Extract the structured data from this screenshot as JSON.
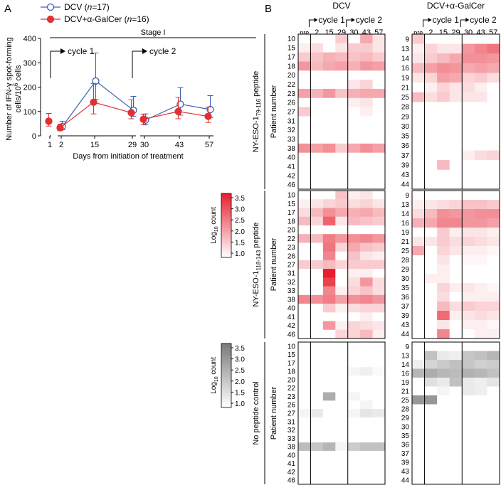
{
  "panel_labels": {
    "a": "A",
    "b": "B"
  },
  "chart_data": [
    {
      "type": "line",
      "panel": "A",
      "legend": [
        {
          "name": "DCV",
          "n": "17",
          "marker": "open",
          "color": "#3a5fb0"
        },
        {
          "name": "DCV+α-GalCer",
          "n": "16",
          "marker": "filled",
          "color": "#e03030"
        }
      ],
      "stage_label": "Stage I",
      "cycle_labels": [
        "cycle 1",
        "cycle 2"
      ],
      "ylabel_line1": "Number of IFN-γ spot-forming",
      "ylabel_line2": "cells/10",
      "ylabel_sup": "6",
      "ylabel_tail": " cells",
      "xlabel": "Days from initiation of treatment",
      "ylim": [
        0,
        400
      ],
      "yticks": [
        "0",
        "100",
        "200",
        "300",
        "400"
      ],
      "xticks": [
        "1",
        "2",
        "15",
        "29",
        "30",
        "43",
        "57"
      ],
      "series": [
        {
          "name": "DCV",
          "color": "#3a5fb0",
          "fill": "open",
          "means": [
            null,
            38,
            225,
            105,
            65,
            130,
            108
          ],
          "upper": [
            null,
            60,
            340,
            162,
            90,
            198,
            165
          ],
          "lower": [
            null,
            25,
            150,
            80,
            45,
            85,
            75
          ]
        },
        {
          "name": "DCV+α-GalCer",
          "color": "#e03030",
          "fill": "filled",
          "means": [
            60,
            33,
            138,
            95,
            68,
            100,
            80
          ],
          "upper": [
            92,
            48,
            215,
            148,
            88,
            158,
            118
          ],
          "lower": [
            40,
            22,
            90,
            70,
            48,
            70,
            55
          ]
        }
      ]
    },
    {
      "type": "heatmap",
      "panel": "B",
      "group_titles": [
        "DCV",
        "DCV+α-GalCer"
      ],
      "column_labels": [
        "pre",
        "2",
        "15",
        "29",
        "30",
        "43",
        "57"
      ],
      "cycle_labels": [
        "cycle 1",
        "cycle 2"
      ],
      "ylabel": "Patient number",
      "patients_dcv": [
        "10",
        "15",
        "17",
        "18",
        "20",
        "22",
        "23",
        "26",
        "27",
        "31",
        "32",
        "33",
        "38",
        "40",
        "41",
        "42",
        "46"
      ],
      "patients_dcvgc": [
        "9",
        "13",
        "14",
        "16",
        "19",
        "21",
        "25",
        "28",
        "29",
        "30",
        "35",
        "36",
        "37",
        "39",
        "43",
        "44"
      ],
      "rows": [
        {
          "label_main": "NY-ESO-1",
          "label_sub": "79-116",
          "label_tail": " peptide",
          "scale": "red",
          "colorbar_title": "Log",
          "colorbar_sub": "10",
          "colorbar_tail": " count",
          "colorbar_ticks": [
            "1.0",
            "1.5",
            "2.0",
            "2.5",
            "3.0",
            "3.5"
          ],
          "dcv": [
            [
              0,
              0,
              0,
              1.6,
              0,
              2.0,
              1.3
            ],
            [
              1.2,
              1.4,
              1.0,
              1.3,
              1.6,
              1.6,
              1.3
            ],
            [
              1.6,
              1.7,
              1.9,
              1.8,
              1.7,
              1.8,
              1.6
            ],
            [
              2.2,
              1.8,
              2.0,
              2.1,
              1.9,
              2.2,
              2.1
            ],
            [
              0,
              0,
              0,
              0,
              0,
              0,
              0
            ],
            [
              0,
              0,
              0,
              0,
              1.3,
              1.5,
              0
            ],
            [
              2.1,
              1.9,
              2.2,
              1.7,
              1.9,
              2.0,
              2.0
            ],
            [
              0,
              0,
              0,
              0,
              1.2,
              1.3,
              1.0
            ],
            [
              1.6,
              0,
              0,
              0,
              1.0,
              1.2,
              0
            ],
            [
              0,
              0,
              0,
              0,
              0,
              0,
              0
            ],
            [
              0,
              0,
              0,
              0,
              0,
              0,
              0
            ],
            [
              0,
              0,
              0,
              0,
              0,
              0,
              0
            ],
            [
              2.3,
              2.1,
              2.3,
              1.6,
              2.0,
              2.3,
              2.1
            ],
            [
              0,
              0,
              0,
              0,
              0,
              0,
              0
            ],
            [
              0,
              0,
              0,
              0,
              0,
              0,
              0
            ],
            [
              0,
              0,
              0,
              0,
              0,
              0,
              0
            ],
            [
              0,
              0,
              0,
              0,
              0,
              0,
              0
            ]
          ],
          "dcvgc": [
            [
              1.6,
              0,
              0,
              0,
              0,
              0,
              0
            ],
            [
              1.2,
              1.5,
              1.3,
              1.3,
              2.2,
              2.4,
              2.6
            ],
            [
              1.3,
              1.6,
              1.8,
              2.0,
              2.3,
              2.3,
              2.2
            ],
            [
              1.8,
              2.1,
              2.3,
              2.2,
              2.0,
              2.1,
              2.0
            ],
            [
              1.3,
              1.5,
              2.1,
              2.0,
              1.5,
              1.6,
              1.4
            ],
            [
              0,
              1.2,
              1.5,
              1.3,
              1.4,
              1.2,
              1.0
            ],
            [
              1.8,
              1.4,
              1.6,
              1.3,
              1.3,
              1.3,
              0
            ],
            [
              0,
              0,
              0,
              0,
              0,
              0,
              0
            ],
            [
              0,
              0,
              0,
              0,
              0,
              0,
              0
            ],
            [
              0,
              0,
              0,
              0,
              0,
              0,
              0
            ],
            [
              0,
              0,
              0,
              0,
              0,
              0,
              0
            ],
            [
              0,
              0,
              0,
              0,
              0,
              0,
              1.0
            ],
            [
              0,
              0,
              0,
              1.0,
              1.2,
              1.4,
              1.5
            ],
            [
              0,
              0,
              1.8,
              0,
              0,
              0,
              0
            ],
            [
              0,
              0,
              0,
              0,
              0,
              0,
              0
            ],
            [
              0,
              0,
              0,
              0,
              0,
              0,
              0
            ]
          ]
        },
        {
          "label_main": "NY-ESO-1",
          "label_sub": "118-143",
          "label_tail": " peptide",
          "scale": "red",
          "colorbar_title": "Log",
          "colorbar_sub": "10",
          "colorbar_tail": " count",
          "colorbar_ticks": [
            "1.0",
            "1.5",
            "2.0",
            "2.5",
            "3.0",
            "3.5"
          ],
          "dcv": [
            [
              0,
              0,
              0,
              1.7,
              1.2,
              1.3,
              0
            ],
            [
              1.2,
              1.3,
              1.5,
              1.6,
              1.4,
              1.5,
              1.3
            ],
            [
              1.4,
              1.8,
              2.3,
              2.0,
              1.9,
              2.0,
              1.8
            ],
            [
              1.8,
              1.5,
              2.8,
              1.3,
              1.8,
              1.7,
              1.6
            ],
            [
              0,
              0,
              0,
              0,
              0,
              0,
              0
            ],
            [
              1.9,
              1.8,
              2.5,
              2.2,
              2.3,
              2.4,
              2.2
            ],
            [
              0,
              0,
              2.6,
              1.5,
              2.0,
              1.7,
              1.6
            ],
            [
              0,
              0,
              2.4,
              0,
              1.7,
              1.3,
              1.2
            ],
            [
              1.6,
              1.6,
              1.8,
              1.5,
              1.6,
              1.6,
              1.6
            ],
            [
              0,
              0,
              3.6,
              0,
              1.2,
              1.2,
              1.0
            ],
            [
              0,
              0,
              3.2,
              0,
              1.4,
              2.2,
              1.4
            ],
            [
              0,
              0,
              2.4,
              1.2,
              1.5,
              1.7,
              1.4
            ],
            [
              2.4,
              2.3,
              2.5,
              2.1,
              2.3,
              2.4,
              2.2
            ],
            [
              0,
              0,
              1.6,
              1.2,
              1.4,
              1.5,
              1.5
            ],
            [
              0,
              0,
              0,
              0,
              1.0,
              1.2,
              0
            ],
            [
              0,
              0,
              2.2,
              1.2,
              1.5,
              1.4,
              1.3
            ],
            [
              0,
              0,
              0,
              1.5,
              1.5,
              1.8,
              1.2
            ]
          ],
          "dcvgc": [
            [
              0,
              0,
              0,
              0,
              0,
              0,
              0
            ],
            [
              1.2,
              1.3,
              1.4,
              1.5,
              1.7,
              1.7,
              1.6
            ],
            [
              1.4,
              1.8,
              2.3,
              2.2,
              2.2,
              2.3,
              2.3
            ],
            [
              1.9,
              2.0,
              2.4,
              2.4,
              2.2,
              2.2,
              2.1
            ],
            [
              0,
              0,
              1.6,
              1.2,
              1.3,
              1.3,
              1.2
            ],
            [
              1.3,
              1.3,
              1.6,
              1.4,
              1.5,
              1.4,
              1.3
            ],
            [
              2.0,
              0,
              1.5,
              1.3,
              1.2,
              1.2,
              1.1
            ],
            [
              0,
              1.0,
              1.3,
              1.0,
              1.1,
              1.1,
              1.0
            ],
            [
              0,
              0,
              1.2,
              1.0,
              1.0,
              1.0,
              1.0
            ],
            [
              0,
              1.2,
              1.2,
              0,
              1.0,
              1.0,
              1.0
            ],
            [
              0,
              0,
              1.5,
              1.2,
              1.3,
              1.2,
              1.1
            ],
            [
              0,
              0,
              1.4,
              0,
              1.2,
              1.2,
              1.2
            ],
            [
              0,
              0,
              1.8,
              1.4,
              1.6,
              1.5,
              1.5
            ],
            [
              0,
              0,
              2.7,
              1.2,
              1.3,
              1.4,
              1.3
            ],
            [
              0,
              0,
              1.3,
              0,
              1.2,
              1.2,
              1.1
            ],
            [
              0,
              0,
              2.4,
              0,
              1.0,
              1.2,
              1.2
            ]
          ]
        },
        {
          "label_main": "No peptide control",
          "label_sub": "",
          "label_tail": "",
          "scale": "gray",
          "colorbar_title": "Log",
          "colorbar_sub": "10",
          "colorbar_tail": " count",
          "colorbar_ticks": [
            "1.0",
            "1.5",
            "2.0",
            "2.5",
            "3.0",
            "3.5"
          ],
          "dcv": [
            [
              0,
              0,
              1.0,
              0,
              0,
              0,
              0
            ],
            [
              0,
              0,
              0,
              0,
              0,
              0,
              0
            ],
            [
              0,
              0,
              0,
              0,
              0,
              1.0,
              0
            ],
            [
              0,
              0,
              0,
              0,
              1.2,
              1.3,
              1.1
            ],
            [
              0,
              0,
              0,
              0,
              0,
              0,
              0
            ],
            [
              0,
              0,
              0,
              0,
              0,
              0,
              0
            ],
            [
              0,
              0,
              2.6,
              0,
              1.2,
              1.0,
              1.0
            ],
            [
              0,
              0,
              0,
              0,
              1.0,
              1.2,
              1.0
            ],
            [
              1.2,
              1.4,
              0,
              0,
              1.2,
              1.5,
              1.4
            ],
            [
              0,
              0,
              0,
              0,
              0,
              0,
              0
            ],
            [
              0,
              0,
              0,
              0,
              0,
              0,
              0
            ],
            [
              0,
              0,
              0,
              0,
              0,
              0,
              0
            ],
            [
              2.3,
              2.1,
              2.4,
              1.2,
              2.0,
              2.2,
              2.2
            ],
            [
              0,
              0,
              0,
              0,
              0,
              0,
              0
            ],
            [
              0,
              0,
              0,
              0,
              0,
              0,
              0
            ],
            [
              0,
              0,
              0,
              0,
              0,
              0,
              0
            ],
            [
              0,
              0,
              0,
              0,
              0,
              0,
              1.0
            ]
          ],
          "dcvgc": [
            [
              0,
              1.0,
              0,
              0,
              0,
              0,
              0
            ],
            [
              0,
              2.2,
              1.4,
              1.3,
              2.1,
              2.2,
              2.4
            ],
            [
              1.3,
              1.8,
              2.0,
              2.2,
              2.1,
              1.9,
              2.0
            ],
            [
              2.4,
              2.6,
              2.4,
              2.3,
              2.5,
              2.4,
              2.2
            ],
            [
              0,
              1.6,
              1.4,
              2.2,
              1.4,
              1.3,
              1.5
            ],
            [
              0,
              0,
              1.2,
              1.0,
              1.4,
              1.3,
              1.0
            ],
            [
              3.0,
              3.0,
              0,
              0,
              0,
              0,
              0
            ],
            [
              0,
              0,
              0,
              0,
              0,
              0,
              0
            ],
            [
              0,
              0,
              0,
              0,
              0,
              0,
              0
            ],
            [
              0,
              0,
              0,
              0,
              0,
              0,
              0
            ],
            [
              0,
              0,
              0,
              0,
              0,
              0,
              0
            ],
            [
              0,
              0,
              0,
              0,
              0,
              0,
              0
            ],
            [
              0,
              0,
              0,
              0,
              0,
              0,
              0
            ],
            [
              0,
              0,
              0,
              0,
              0,
              0,
              0
            ],
            [
              0,
              0,
              0,
              0,
              0,
              0,
              0
            ],
            [
              0,
              0,
              0,
              0,
              0,
              0,
              0
            ]
          ]
        }
      ]
    }
  ]
}
